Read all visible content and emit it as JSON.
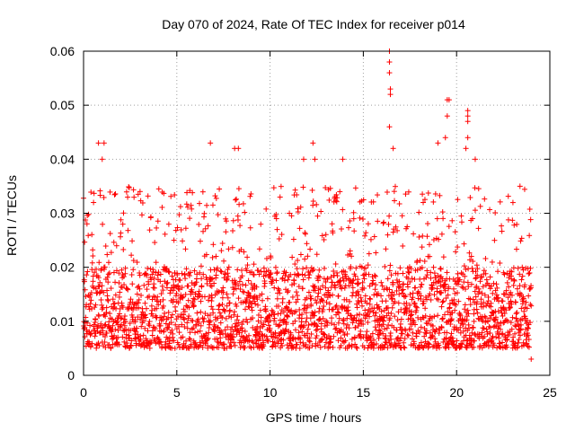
{
  "chart_data": {
    "type": "scatter",
    "title": "Day 070 of 2024, Rate Of TEC Index for receiver p014",
    "xlabel": "GPS time / hours",
    "ylabel": "ROTI / TECUs",
    "xlim": [
      0,
      25
    ],
    "ylim": [
      0,
      0.06
    ],
    "xticks": [
      0,
      5,
      10,
      15,
      20,
      25
    ],
    "xtick_labels": [
      "0",
      "5",
      "10",
      "15",
      "20",
      "25"
    ],
    "yticks": [
      0,
      0.01,
      0.02,
      0.03,
      0.04,
      0.05,
      0.06
    ],
    "ytick_labels": [
      "0",
      "0.01",
      "0.02",
      "0.03",
      "0.04",
      "0.05",
      "0.06"
    ],
    "grid": true,
    "marker": "+",
    "color": "#ff0000",
    "series": [
      {
        "name": "ROTI",
        "sampling": "dense samples every ~30 s over 0–24 h, typical ROTI 0.005–0.02 TECU",
        "x_range": [
          0,
          24
        ],
        "typical_range": [
          0.005,
          0.02
        ],
        "notable_points": [
          {
            "x": 0.8,
            "y": 0.043
          },
          {
            "x": 1.1,
            "y": 0.043
          },
          {
            "x": 1.0,
            "y": 0.04
          },
          {
            "x": 6.8,
            "y": 0.043
          },
          {
            "x": 8.1,
            "y": 0.042
          },
          {
            "x": 8.3,
            "y": 0.042
          },
          {
            "x": 11.8,
            "y": 0.04
          },
          {
            "x": 12.3,
            "y": 0.043
          },
          {
            "x": 12.4,
            "y": 0.04
          },
          {
            "x": 13.9,
            "y": 0.04
          },
          {
            "x": 16.4,
            "y": 0.06
          },
          {
            "x": 16.4,
            "y": 0.058
          },
          {
            "x": 16.4,
            "y": 0.056
          },
          {
            "x": 16.45,
            "y": 0.053
          },
          {
            "x": 16.45,
            "y": 0.052
          },
          {
            "x": 16.4,
            "y": 0.046
          },
          {
            "x": 16.6,
            "y": 0.042
          },
          {
            "x": 19.0,
            "y": 0.043
          },
          {
            "x": 19.5,
            "y": 0.051
          },
          {
            "x": 19.6,
            "y": 0.051
          },
          {
            "x": 19.5,
            "y": 0.048
          },
          {
            "x": 19.4,
            "y": 0.044
          },
          {
            "x": 20.6,
            "y": 0.049
          },
          {
            "x": 20.6,
            "y": 0.048
          },
          {
            "x": 20.6,
            "y": 0.047
          },
          {
            "x": 20.6,
            "y": 0.044
          },
          {
            "x": 20.5,
            "y": 0.042
          },
          {
            "x": 21.0,
            "y": 0.04
          },
          {
            "x": 23.4,
            "y": 0.035
          },
          {
            "x": 24.0,
            "y": 0.003
          }
        ]
      }
    ]
  }
}
